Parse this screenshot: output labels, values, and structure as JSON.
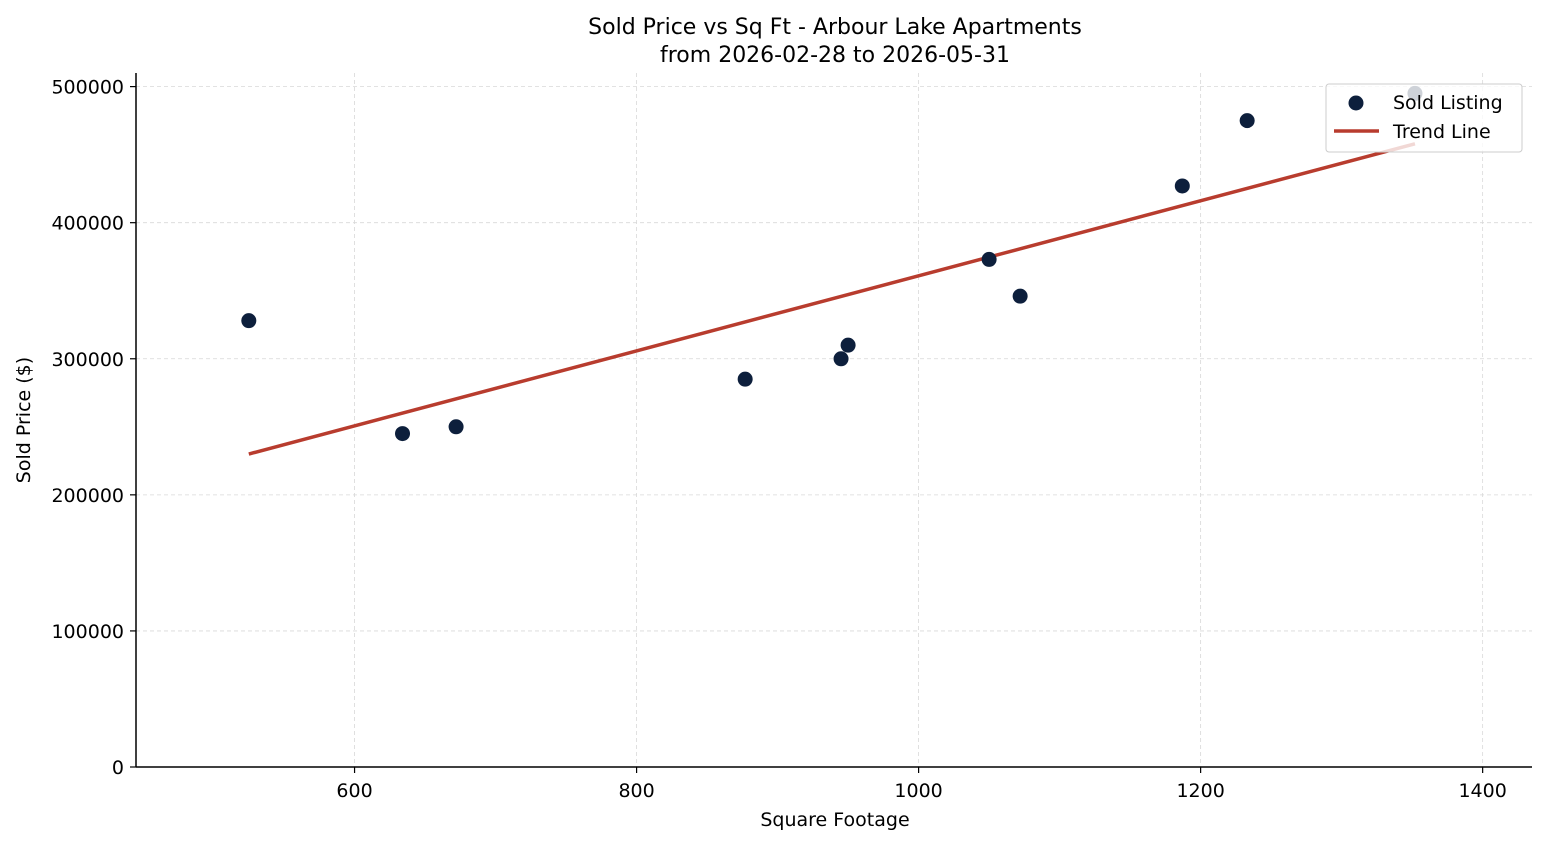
{
  "chart_data": {
    "type": "scatter",
    "title": "Sold Price vs Sq Ft - Arbour Lake Apartments",
    "subtitle": "from 2026-02-28 to 2026-05-31",
    "xlabel": "Square Footage",
    "ylabel": "Sold Price ($)",
    "xlim": [
      445,
      1435
    ],
    "ylim": [
      0,
      510000
    ],
    "xticks": [
      600,
      800,
      1000,
      1200,
      1400
    ],
    "yticks": [
      0,
      100000,
      200000,
      300000,
      400000,
      500000
    ],
    "grid": true,
    "legend_position": "top-right",
    "series": [
      {
        "name": "Sold Listing",
        "kind": "scatter",
        "color": "#0d1f3c",
        "points": [
          {
            "x": 525,
            "y": 328000
          },
          {
            "x": 634,
            "y": 245000
          },
          {
            "x": 672,
            "y": 250000
          },
          {
            "x": 877,
            "y": 285000
          },
          {
            "x": 945,
            "y": 300000
          },
          {
            "x": 950,
            "y": 310000
          },
          {
            "x": 1050,
            "y": 373000
          },
          {
            "x": 1072,
            "y": 346000
          },
          {
            "x": 1187,
            "y": 427000
          },
          {
            "x": 1233,
            "y": 475000
          },
          {
            "x": 1352,
            "y": 495000
          }
        ]
      },
      {
        "name": "Trend Line",
        "kind": "line",
        "color": "#b83c2e",
        "points": [
          {
            "x": 525,
            "y": 230000
          },
          {
            "x": 1352,
            "y": 458000
          }
        ]
      }
    ]
  }
}
